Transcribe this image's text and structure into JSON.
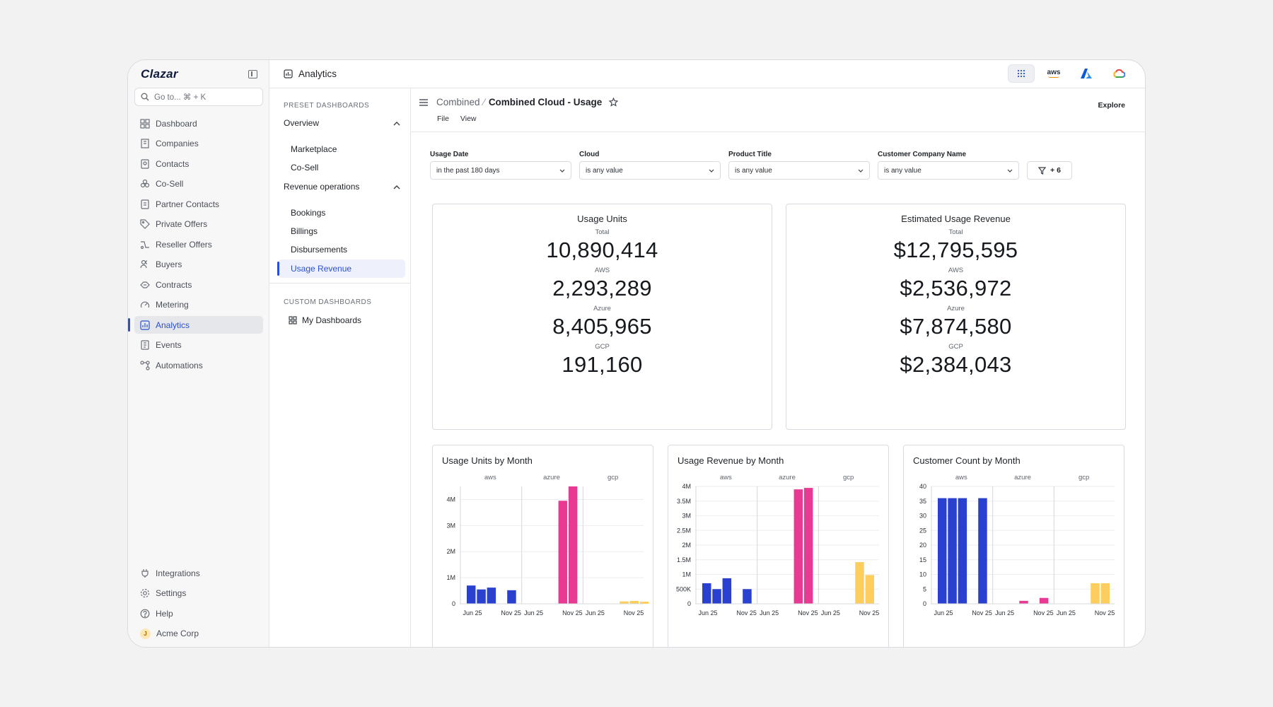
{
  "app": {
    "logo": "Clazar",
    "page_title": "Analytics"
  },
  "search": {
    "placeholder": "Go to... ⌘ + K"
  },
  "sidebar": {
    "items": [
      {
        "label": "Dashboard",
        "icon": "dashboard-icon"
      },
      {
        "label": "Companies",
        "icon": "building-icon"
      },
      {
        "label": "Contacts",
        "icon": "contacts-icon"
      },
      {
        "label": "Co-Sell",
        "icon": "co-sell-icon"
      },
      {
        "label": "Partner Contacts",
        "icon": "partner-contacts-icon"
      },
      {
        "label": "Private Offers",
        "icon": "tag-icon"
      },
      {
        "label": "Reseller Offers",
        "icon": "reseller-icon"
      },
      {
        "label": "Buyers",
        "icon": "buyers-icon"
      },
      {
        "label": "Contracts",
        "icon": "handshake-icon"
      },
      {
        "label": "Metering",
        "icon": "gauge-icon"
      },
      {
        "label": "Analytics",
        "icon": "analytics-icon",
        "active": true
      },
      {
        "label": "Events",
        "icon": "events-icon"
      },
      {
        "label": "Automations",
        "icon": "automations-icon"
      }
    ],
    "bottom": [
      {
        "label": "Integrations",
        "icon": "plug-icon"
      },
      {
        "label": "Settings",
        "icon": "gear-icon"
      },
      {
        "label": "Help",
        "icon": "help-icon"
      },
      {
        "label": "Acme Corp",
        "icon": "avatar",
        "avatar_letter": "J"
      }
    ]
  },
  "clouds": [
    "apps-grid-icon",
    "aws-icon",
    "azure-icon",
    "gcp-icon"
  ],
  "cloud_labels": {
    "aws": "aws"
  },
  "dash_panel": {
    "preset_label": "PRESET DASHBOARDS",
    "overview": {
      "label": "Overview",
      "items": [
        "Marketplace",
        "Co-Sell"
      ]
    },
    "revenue": {
      "label": "Revenue operations",
      "items": [
        "Bookings",
        "Billings",
        "Disbursements",
        "Usage Revenue"
      ]
    },
    "custom_label": "CUSTOM DASHBOARDS",
    "my_dashboards": "My Dashboards"
  },
  "breadcrumb": {
    "parent": "Combined",
    "separator": "⁄",
    "current": "Combined Cloud - Usage"
  },
  "menu": {
    "file": "File",
    "view": "View"
  },
  "explore": "Explore",
  "filters": [
    {
      "label": "Usage Date",
      "value": "in the past 180 days"
    },
    {
      "label": "Cloud",
      "value": "is any value"
    },
    {
      "label": "Product Title",
      "value": "is any value"
    },
    {
      "label": "Customer Company Name",
      "value": "is any value"
    }
  ],
  "more_filters": "+ 6",
  "kpis": [
    {
      "title": "Usage Units",
      "rows": [
        {
          "label": "Total",
          "value": "10,890,414"
        },
        {
          "label": "AWS",
          "value": "2,293,289"
        },
        {
          "label": "Azure",
          "value": "8,405,965"
        },
        {
          "label": "GCP",
          "value": "191,160"
        }
      ]
    },
    {
      "title": "Estimated Usage Revenue",
      "rows": [
        {
          "label": "Total",
          "value": "$12,795,595"
        },
        {
          "label": "AWS",
          "value": "$2,536,972"
        },
        {
          "label": "Azure",
          "value": "$7,874,580"
        },
        {
          "label": "GCP",
          "value": "$2,384,043"
        }
      ]
    }
  ],
  "colors": {
    "aws": "#2a41cf",
    "gcp": "#fdcd5e",
    "azure": "#e83a93",
    "accent": "#2a4fd3"
  },
  "chart_data": [
    {
      "type": "bar",
      "title": "Usage Units by Month",
      "facets": [
        "aws",
        "azure",
        "gcp"
      ],
      "x_tick_labels": [
        "Jun 25",
        "Nov 25"
      ],
      "y_ticks": [
        0,
        1000000,
        2000000,
        3000000,
        4000000
      ],
      "y_tick_labels": [
        "0",
        "1M",
        "2M",
        "3M",
        "4M"
      ],
      "ylim": [
        0,
        4500000
      ],
      "series": [
        {
          "name": "aws",
          "values": [
            700000,
            550000,
            620000,
            0,
            520000,
            0
          ]
        },
        {
          "name": "azure",
          "values": [
            0,
            0,
            0,
            3950000,
            4500000,
            0
          ]
        },
        {
          "name": "gcp",
          "values": [
            0,
            0,
            0,
            90000,
            110000,
            80000
          ]
        }
      ],
      "legend": [
        "aws",
        "gcp",
        "azure"
      ]
    },
    {
      "type": "bar",
      "title": "Usage Revenue by Month",
      "facets": [
        "aws",
        "azure",
        "gcp"
      ],
      "x_tick_labels": [
        "Jun 25",
        "Nov 25"
      ],
      "y_ticks": [
        0,
        500000,
        1000000,
        1500000,
        2000000,
        2500000,
        3000000,
        3500000,
        4000000
      ],
      "y_tick_labels": [
        "0",
        "500K",
        "1M",
        "1.5M",
        "2M",
        "2.5M",
        "3M",
        "3.5M",
        "4M"
      ],
      "ylim": [
        0,
        4000000
      ],
      "series": [
        {
          "name": "aws",
          "values": [
            700000,
            500000,
            870000,
            0,
            500000,
            0
          ]
        },
        {
          "name": "azure",
          "values": [
            0,
            0,
            0,
            3900000,
            3950000,
            0
          ]
        },
        {
          "name": "gcp",
          "values": [
            0,
            0,
            0,
            1420000,
            980000,
            0
          ]
        }
      ],
      "legend": [
        "aws",
        "gcp",
        "azure"
      ]
    },
    {
      "type": "bar",
      "title": "Customer Count by Month",
      "facets": [
        "aws",
        "azure",
        "gcp"
      ],
      "x_tick_labels": [
        "Jun 25",
        "Nov 25"
      ],
      "y_ticks": [
        0,
        5,
        10,
        15,
        20,
        25,
        30,
        35,
        40
      ],
      "y_tick_labels": [
        "0",
        "5",
        "10",
        "15",
        "20",
        "25",
        "30",
        "35",
        "40"
      ],
      "ylim": [
        0,
        40
      ],
      "series": [
        {
          "name": "aws",
          "values": [
            36,
            36,
            36,
            0,
            36,
            0
          ]
        },
        {
          "name": "azure",
          "values": [
            0,
            0,
            1,
            0,
            2,
            0
          ]
        },
        {
          "name": "gcp",
          "values": [
            0,
            0,
            0,
            7,
            7,
            0
          ]
        }
      ],
      "legend": [
        "aws",
        "gcp",
        "azure"
      ]
    }
  ]
}
